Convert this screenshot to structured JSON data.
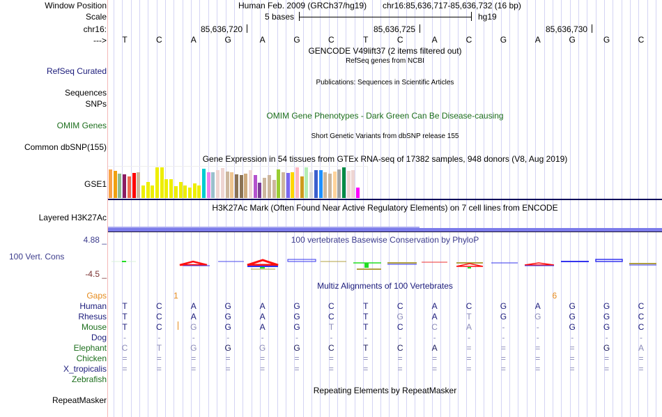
{
  "header": {
    "window_position_label": "Window Position",
    "scale_label": "Scale",
    "chrom_label": "chr16:",
    "strand_label": "--->",
    "assembly_title": "Human Feb. 2009 (GRCh37/hg19)",
    "position": "chr16:85,636,717-85,636,732 (16 bp)",
    "scale_text": "5 bases",
    "scale_db": "hg19",
    "ticks": [
      "85,636,720",
      "85,636,725",
      "85,636,730"
    ]
  },
  "sequence": [
    "T",
    "C",
    "A",
    "G",
    "A",
    "G",
    "C",
    "T",
    "C",
    "A",
    "C",
    "G",
    "A",
    "G",
    "G",
    "C"
  ],
  "tracks": {
    "gencode": {
      "title": "GENCODE V49lift37 (2 items filtered out)"
    },
    "refseq": {
      "label": "RefSeq Curated",
      "title": "RefSeq genes from NCBI"
    },
    "publications": {
      "label": "Sequences",
      "title": "Publications: Sequences in Scientific Articles"
    },
    "snps": {
      "label": "SNPs"
    },
    "omim": {
      "label": "OMIM Genes",
      "title": "OMIM Gene Phenotypes - Dark Green Can Be Disease-causing"
    },
    "dbsnp": {
      "label": "Common dbSNP(155)",
      "title": "Short Genetic Variants from dbSNP release 155"
    },
    "gtex": {
      "label": "GSE1",
      "title": "Gene Expression in 54 tissues from GTEx RNA-seq of 17382 samples, 948 donors (V8, Aug 2019)",
      "bars": [
        {
          "color": "#f9a24a",
          "value": 0.93
        },
        {
          "color": "#f0a010",
          "value": 0.89
        },
        {
          "color": "#8fbc8f",
          "value": 0.8
        },
        {
          "color": "#8b1c62",
          "value": 0.78
        },
        {
          "color": "#ee6a50",
          "value": 0.7
        },
        {
          "color": "#ff0000",
          "value": 0.82
        },
        {
          "color": "#cdb79e",
          "value": 0.84
        },
        {
          "color": "#eeee00",
          "value": 0.4
        },
        {
          "color": "#eeee00",
          "value": 0.53
        },
        {
          "color": "#eeee00",
          "value": 0.4
        },
        {
          "color": "#eeee00",
          "value": 1.0
        },
        {
          "color": "#eeee00",
          "value": 1.0
        },
        {
          "color": "#eeee00",
          "value": 0.62
        },
        {
          "color": "#eeee00",
          "value": 0.62
        },
        {
          "color": "#eeee00",
          "value": 0.38
        },
        {
          "color": "#eeee00",
          "value": 0.53
        },
        {
          "color": "#eeee00",
          "value": 0.4
        },
        {
          "color": "#eeee00",
          "value": 0.33
        },
        {
          "color": "#eeee00",
          "value": 0.48
        },
        {
          "color": "#eeee00",
          "value": 0.4
        },
        {
          "color": "#00ced1",
          "value": 0.95
        },
        {
          "color": "#ee82ee",
          "value": 0.84
        },
        {
          "color": "#9ac0cd",
          "value": 0.84
        },
        {
          "color": "#eed5d2",
          "value": 0.91
        },
        {
          "color": "#eed5d2",
          "value": 0.97
        },
        {
          "color": "#cdb79e",
          "value": 0.86
        },
        {
          "color": "#eec591",
          "value": 0.84
        },
        {
          "color": "#8b7355",
          "value": 0.78
        },
        {
          "color": "#8b7355",
          "value": 0.76
        },
        {
          "color": "#cdaa7d",
          "value": 0.8
        },
        {
          "color": "#eed5d2",
          "value": 0.92
        },
        {
          "color": "#b452cd",
          "value": 0.76
        },
        {
          "color": "#7d3c98",
          "value": 0.5
        },
        {
          "color": "#cdb79e",
          "value": 0.67
        },
        {
          "color": "#cdb79e",
          "value": 0.75
        },
        {
          "color": "#cdb79e",
          "value": 0.59
        },
        {
          "color": "#9acd32",
          "value": 0.94
        },
        {
          "color": "#cdb79e",
          "value": 0.83
        },
        {
          "color": "#7b68ee",
          "value": 0.81
        },
        {
          "color": "#ffd700",
          "value": 0.83
        },
        {
          "color": "#ffb6c1",
          "value": 1.0
        },
        {
          "color": "#cd9b1d",
          "value": 0.7
        },
        {
          "color": "#b4eeb4",
          "value": 1.0
        },
        {
          "color": "#d9d9d9",
          "value": 0.83
        },
        {
          "color": "#3a5fcd",
          "value": 0.91
        },
        {
          "color": "#1e90ff",
          "value": 0.91
        },
        {
          "color": "#cdb79e",
          "value": 0.83
        },
        {
          "color": "#cdb79e",
          "value": 0.8
        },
        {
          "color": "#ffd39b",
          "value": 0.86
        },
        {
          "color": "#a6a6a6",
          "value": 0.93
        },
        {
          "color": "#008b45",
          "value": 1.0
        },
        {
          "color": "#eed5d2",
          "value": 0.88
        },
        {
          "color": "#eed5d2",
          "value": 0.9
        },
        {
          "color": "#ff00ff",
          "value": 0.33
        }
      ]
    },
    "h3k27ac": {
      "label": "Layered H3K27Ac",
      "title": "H3K27Ac Mark (Often Found Near Active Regulatory Elements) on 7 cell lines from ENCODE"
    },
    "phylop": {
      "label": "100 Vert. Cons",
      "title": "100 vertebrates Basewise Conservation by PhyloP",
      "max": "4.88 _",
      "min": "-4.5 _"
    },
    "multiz": {
      "title": "Multiz Alignments of 100 Vertebrates",
      "gaps_label": "Gaps",
      "gaps": [
        {
          "after_base": 2,
          "count": "1"
        },
        {
          "after_base": 13,
          "count": "6"
        }
      ],
      "species": [
        {
          "name": "Human",
          "color": "navy",
          "bases": [
            "T",
            "C",
            "A",
            "G",
            "A",
            "G",
            "C",
            "T",
            "C",
            "A",
            "C",
            "G",
            "A",
            "G",
            "G",
            "C"
          ],
          "faint": []
        },
        {
          "name": "Rhesus",
          "color": "navy",
          "bases": [
            "T",
            "C",
            "A",
            "G",
            "A",
            "G",
            "C",
            "T",
            "G",
            "A",
            "T",
            "G",
            "G",
            "G",
            "G",
            "C"
          ],
          "faint": [
            8,
            10,
            12
          ]
        },
        {
          "name": "Mouse",
          "color": "green",
          "bases": [
            "T",
            "C",
            "G",
            "G",
            "A",
            "G",
            "T",
            "T",
            "C",
            "C",
            "A",
            "-",
            "-",
            "G",
            "G",
            "C"
          ],
          "faint": [
            2,
            6,
            9,
            10,
            11,
            12
          ]
        },
        {
          "name": "Dog",
          "color": "navy",
          "bases": [
            "-",
            "-",
            "-",
            "-",
            "-",
            "-",
            "-",
            "-",
            "-",
            "-",
            "-",
            "-",
            "-",
            "-",
            "-",
            "-"
          ],
          "faint": [
            0,
            1,
            2,
            3,
            4,
            5,
            6,
            7,
            8,
            9,
            10,
            11,
            12,
            13,
            14,
            15
          ]
        },
        {
          "name": "Elephant",
          "color": "green",
          "bases": [
            "C",
            "T",
            "G",
            "G",
            "G",
            "G",
            "C",
            "T",
            "C",
            "A",
            "=",
            "=",
            "=",
            "=",
            "G",
            "A"
          ],
          "faint": [
            0,
            1,
            2,
            4,
            10,
            11,
            12,
            13,
            15
          ]
        },
        {
          "name": "Chicken",
          "color": "green",
          "bases": [
            "=",
            "=",
            "=",
            "=",
            "=",
            "=",
            "=",
            "=",
            "=",
            "=",
            "=",
            "=",
            "=",
            "=",
            "=",
            "="
          ],
          "faint": [
            0,
            1,
            2,
            3,
            4,
            5,
            6,
            7,
            8,
            9,
            10,
            11,
            12,
            13,
            14,
            15
          ]
        },
        {
          "name": "X_tropicalis",
          "color": "navy",
          "bases": [
            "=",
            "=",
            "=",
            "=",
            "=",
            "=",
            "=",
            "=",
            "=",
            "=",
            "=",
            "=",
            "=",
            "=",
            "=",
            "="
          ],
          "faint": [
            0,
            1,
            2,
            3,
            4,
            5,
            6,
            7,
            8,
            9,
            10,
            11,
            12,
            13,
            14,
            15
          ]
        },
        {
          "name": "Zebrafish",
          "color": "green",
          "bases": [],
          "faint": []
        }
      ]
    },
    "repeatmasker": {
      "label": "RepeatMasker",
      "title": "Repeating Elements by RepeatMasker"
    }
  },
  "colors": {
    "grid": "#d4d4f4",
    "gutter": "#f4b8b8",
    "navy": "#1a1a7a",
    "green": "#1c6e1c",
    "orange": "#e58a1c",
    "h3k27ac": "#7b7bea"
  }
}
